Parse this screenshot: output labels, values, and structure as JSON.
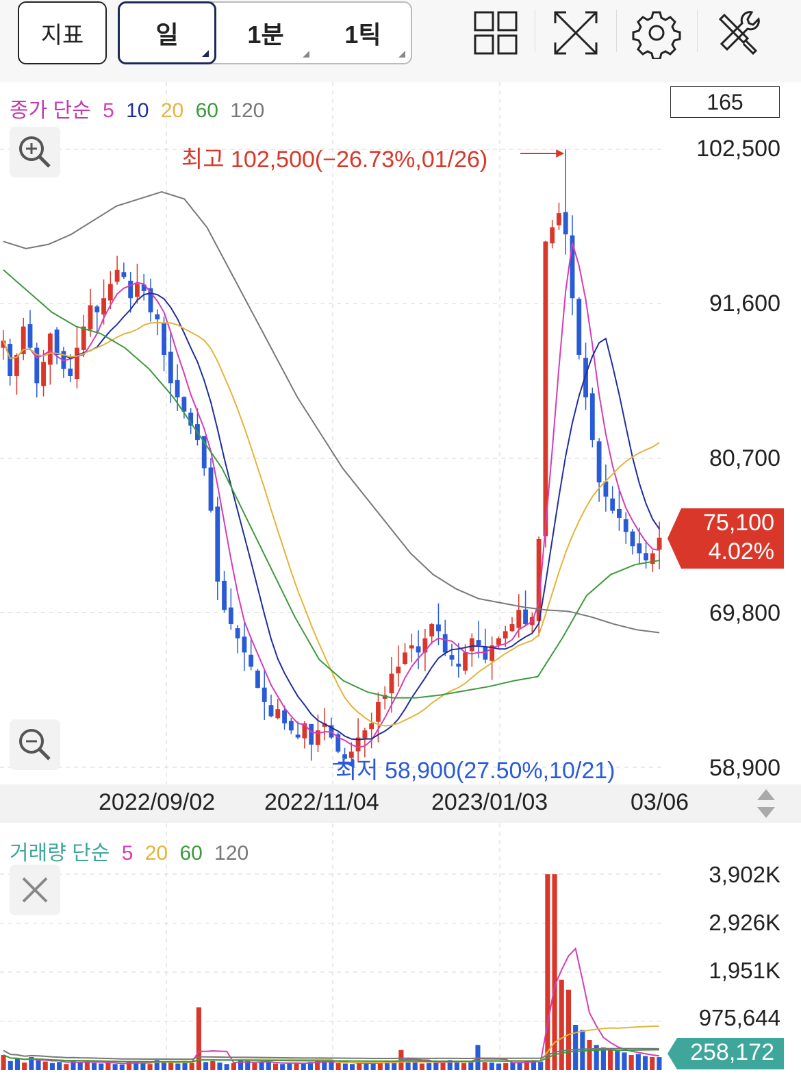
{
  "toolbar": {
    "indicator_label": "지표",
    "periods": [
      {
        "label": "일",
        "active": true
      },
      {
        "label": "1분",
        "active": false
      },
      {
        "label": "1틱",
        "active": false
      }
    ],
    "icons": [
      "layout-grid-icon",
      "fullscreen-icon",
      "settings-gear-icon",
      "tools-icon"
    ]
  },
  "price_legend": {
    "label": "종가 단순",
    "periods": [
      "5",
      "10",
      "20",
      "60",
      "120"
    ],
    "colors": [
      "#d63cb5",
      "#1f2d9e",
      "#e3b43a",
      "#3a9a3a",
      "#777777"
    ]
  },
  "visible_count": "165",
  "price_axis": [
    "102,500",
    "91,600",
    "80,700",
    "69,800",
    "58,900"
  ],
  "high_annotation": "최고 102,500(−26.73%,01/26)",
  "low_annotation": "최저 58,900(27.50%,10/21)",
  "current": {
    "price": "75,100",
    "change": "4.02%",
    "color": "#d9372a"
  },
  "x_axis": [
    "2022/09/02",
    "2022/11/04",
    "2023/01/03",
    "03/06"
  ],
  "volume_legend": {
    "label": "거래량 단순",
    "periods": [
      "5",
      "20",
      "60",
      "120"
    ],
    "colors": [
      "#d63cb5",
      "#e3b43a",
      "#3a9a3a",
      "#777777"
    ]
  },
  "volume_axis": [
    "3,902K",
    "2,926K",
    "1,951K",
    "975,644"
  ],
  "current_volume": {
    "value": "258,172",
    "color": "#3ea69b"
  },
  "colors": {
    "up": "#d9372a",
    "down": "#2a5bd7",
    "grid": "#d6d6d6"
  },
  "chart_data": [
    {
      "type": "candlestick",
      "title": "",
      "ylim": [
        58900,
        102500
      ],
      "y_ticks": [
        102500,
        91600,
        80700,
        69800,
        58900
      ],
      "x_ticks": [
        "2022/09/02",
        "2022/11/04",
        "2023/01/03",
        "03/06"
      ],
      "high": {
        "value": 102500,
        "date": "01/26",
        "pct": -26.73
      },
      "low": {
        "value": 58900,
        "date": "10/21",
        "pct": 27.5
      },
      "last_close": 75100,
      "last_change_pct": 4.02,
      "moving_averages": [
        "5",
        "10",
        "20",
        "60",
        "120"
      ],
      "close_approx": [
        89000,
        86500,
        88000,
        90000,
        88500,
        86000,
        87500,
        89500,
        88000,
        87000,
        86500,
        88500,
        90000,
        91500,
        91000,
        92000,
        93000,
        94000,
        93500,
        92000,
        93000,
        92500,
        91000,
        90500,
        88000,
        86000,
        85000,
        84000,
        83000,
        82000,
        80000,
        77000,
        72000,
        70000,
        69000,
        68000,
        67000,
        66000,
        64500,
        63500,
        62500,
        63000,
        62000,
        61500,
        61000,
        62000,
        60500,
        61500,
        62000,
        61000,
        60000,
        59500,
        60000,
        61000,
        61500,
        62000,
        63500,
        64000,
        65500,
        66000,
        67000,
        67500,
        67000,
        68000,
        69000,
        68500,
        67000,
        66500,
        66000,
        67000,
        68000,
        67500,
        66500,
        67500,
        68000,
        68500,
        69000,
        70000,
        69000,
        69500,
        75000,
        96000,
        97000,
        98000,
        96500,
        92000,
        88000,
        85000,
        82000,
        79000,
        78000,
        77000,
        76500,
        75500,
        74500,
        74000,
        73500,
        74000,
        75100
      ],
      "ma120_approx": [
        96000,
        95500,
        95800,
        96500,
        97500,
        98500,
        99000,
        99500,
        99000,
        97000,
        94000,
        91000,
        88000,
        85000,
        82500,
        80000,
        78000,
        76000,
        74000,
        72500,
        71500,
        70800,
        70500,
        70200,
        70000,
        69900,
        69500,
        69000,
        68600,
        68400
      ],
      "ma60_approx": [
        94000,
        92500,
        91000,
        90000,
        89500,
        88500,
        87000,
        85000,
        82500,
        80000,
        76500,
        73000,
        69500,
        66500,
        65000,
        64200,
        63800,
        63800,
        64000,
        64300,
        64600,
        65000,
        65300,
        68000,
        71000,
        72500,
        73200,
        73500
      ]
    },
    {
      "type": "bar",
      "title": "",
      "ylim": [
        0,
        3902000
      ],
      "y_ticks": [
        975644,
        1951000,
        2926000,
        3902000
      ],
      "last_volume": 258172,
      "moving_averages": [
        "5",
        "20",
        "60",
        "120"
      ],
      "volume_approx_k": [
        300,
        180,
        220,
        150,
        260,
        200,
        170,
        140,
        160,
        120,
        200,
        150,
        180,
        140,
        130,
        150,
        120,
        110,
        160,
        180,
        140,
        120,
        200,
        150,
        170,
        130,
        180,
        140,
        1250,
        160,
        180,
        150,
        120,
        140,
        200,
        180,
        140,
        150,
        160,
        130,
        120,
        140,
        150,
        130,
        160,
        180,
        200,
        150,
        140,
        130,
        120,
        160,
        140,
        130,
        150,
        180,
        160,
        400,
        170,
        150,
        130,
        140,
        160,
        180,
        200,
        150,
        140,
        170,
        500,
        160,
        150,
        130,
        140,
        150,
        160,
        180,
        200,
        170,
        3900,
        3900,
        1800,
        1600,
        900,
        800,
        600,
        500,
        450,
        400,
        380,
        350,
        300,
        320,
        280,
        260,
        258
      ]
    }
  ]
}
